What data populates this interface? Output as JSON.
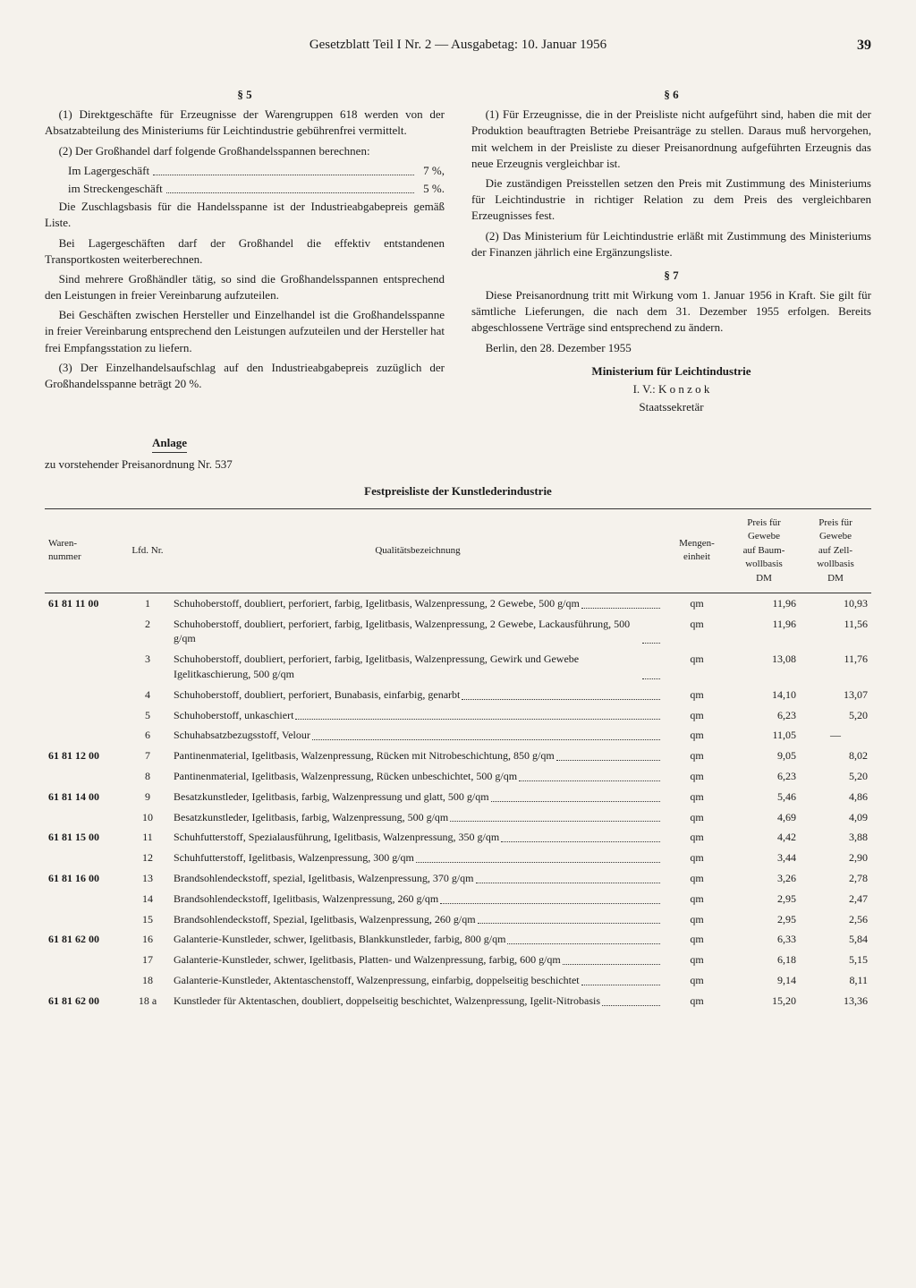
{
  "header": {
    "title": "Gesetzblatt Teil I Nr. 2 — Ausgabetag: 10. Januar 1956",
    "page_number": "39"
  },
  "left_col": {
    "s5_head": "§ 5",
    "p1": "(1) Direktgeschäfte für Erzeugnisse der Warengruppen 618 werden von der Absatzabteilung des Ministeriums für Leichtindustrie gebührenfrei vermittelt.",
    "p2_lead": "(2) Der Großhandel darf folgende Großhandelsspannen berechnen:",
    "rate1_label": "Im Lagergeschäft",
    "rate1_val": "7 %,",
    "rate2_label": "im Streckengeschäft",
    "rate2_val": "5 %.",
    "p3": "Die Zuschlagsbasis für die Handelsspanne ist der Industrieabgabepreis gemäß Liste.",
    "p4": "Bei Lagergeschäften darf der Großhandel die effektiv entstandenen Transportkosten weiterberechnen.",
    "p5": "Sind mehrere Großhändler tätig, so sind die Großhandelsspannen entsprechend den Leistungen in freier Vereinbarung aufzuteilen.",
    "p6": "Bei Geschäften zwischen Hersteller und Einzelhandel ist die Großhandelsspanne in freier Vereinbarung entsprechend den Leistungen aufzuteilen und der Hersteller hat frei Empfangsstation zu liefern.",
    "p7": "(3) Der Einzelhandelsaufschlag auf den Industrieabgabepreis zuzüglich der Großhandelsspanne beträgt 20 %."
  },
  "right_col": {
    "s6_head": "§ 6",
    "p1": "(1) Für Erzeugnisse, die in der Preisliste nicht aufgeführt sind, haben die mit der Produktion beauftragten Betriebe Preisanträge zu stellen. Daraus muß hervorgehen, mit welchem in der Preisliste zu dieser Preisanordnung aufgeführten Erzeugnis das neue Erzeugnis vergleichbar ist.",
    "p2": "Die zuständigen Preisstellen setzen den Preis mit Zustimmung des Ministeriums für Leichtindustrie in richtiger Relation zu dem Preis des vergleichbaren Erzeugnisses fest.",
    "p3": "(2) Das Ministerium für Leichtindustrie erläßt mit Zustimmung des Ministeriums der Finanzen jährlich eine Ergänzungsliste.",
    "s7_head": "§ 7",
    "p4": "Diese Preisanordnung tritt mit Wirkung vom 1. Januar 1956 in Kraft. Sie gilt für sämtliche Lieferungen, die nach dem 31. Dezember 1955 erfolgen. Bereits abgeschlossene Verträge sind entsprechend zu ändern.",
    "date_line": "Berlin, den 28. Dezember 1955",
    "ministry": "Ministerium für Leichtindustrie",
    "sig1": "I. V.: K o n z o k",
    "sig2": "Staatssekretär"
  },
  "anlage": {
    "title": "Anlage",
    "sub": "zu vorstehender Preisanordnung Nr. 537",
    "table_title": "Festpreisliste der Kunstlederindustrie"
  },
  "table": {
    "columns": {
      "waren": "Waren-\nnummer",
      "lfd": "Lfd. Nr.",
      "qual": "Qualitätsbezeichnung",
      "unit": "Mengen-\neinheit",
      "price1": "Preis für\nGewebe\nauf Baum-\nwollbasis\nDM",
      "price2": "Preis für\nGewebe\nauf Zell-\nwollbasis\nDM"
    },
    "rows": [
      {
        "waren": "61 81 11 00",
        "lfd": "1",
        "desc": "Schuhoberstoff, doubliert, perforiert, farbig, Igelitbasis, Walzenpressung, 2 Gewebe, 500 g/qm",
        "unit": "qm",
        "p1": "11,96",
        "p2": "10,93"
      },
      {
        "waren": "",
        "lfd": "2",
        "desc": "Schuhoberstoff, doubliert, perforiert, farbig, Igelitbasis, Walzenpressung, 2 Gewebe, Lackausführung, 500 g/qm",
        "unit": "qm",
        "p1": "11,96",
        "p2": "11,56"
      },
      {
        "waren": "",
        "lfd": "3",
        "desc": "Schuhoberstoff, doubliert, perforiert, farbig, Igelitbasis, Walzenpressung, Gewirk und Gewebe Igelitkaschierung, 500 g/qm",
        "unit": "qm",
        "p1": "13,08",
        "p2": "11,76"
      },
      {
        "waren": "",
        "lfd": "4",
        "desc": "Schuhoberstoff, doubliert, perforiert, Bunabasis, einfarbig, genarbt",
        "unit": "qm",
        "p1": "14,10",
        "p2": "13,07"
      },
      {
        "waren": "",
        "lfd": "5",
        "desc": "Schuhoberstoff, unkaschiert",
        "unit": "qm",
        "p1": "6,23",
        "p2": "5,20"
      },
      {
        "waren": "",
        "lfd": "6",
        "desc": "Schuhabsatzbezugsstoff, Velour",
        "unit": "qm",
        "p1": "11,05",
        "p2": "—"
      },
      {
        "waren": "61 81 12 00",
        "lfd": "7",
        "desc": "Pantinenmaterial, Igelitbasis, Walzenpressung, Rücken mit Nitrobeschichtung, 850 g/qm",
        "unit": "qm",
        "p1": "9,05",
        "p2": "8,02"
      },
      {
        "waren": "",
        "lfd": "8",
        "desc": "Pantinenmaterial, Igelitbasis, Walzenpressung, Rücken unbeschichtet, 500 g/qm",
        "unit": "qm",
        "p1": "6,23",
        "p2": "5,20"
      },
      {
        "waren": "61 81 14 00",
        "lfd": "9",
        "desc": "Besatzkunstleder, Igelitbasis, farbig, Walzenpressung und glatt, 500 g/qm",
        "unit": "qm",
        "p1": "5,46",
        "p2": "4,86"
      },
      {
        "waren": "",
        "lfd": "10",
        "desc": "Besatzkunstleder, Igelitbasis, farbig, Walzenpressung, 500 g/qm",
        "unit": "qm",
        "p1": "4,69",
        "p2": "4,09"
      },
      {
        "waren": "61 81 15 00",
        "lfd": "11",
        "desc": "Schuhfutterstoff, Spezialausführung, Igelitbasis, Walzenpressung, 350 g/qm",
        "unit": "qm",
        "p1": "4,42",
        "p2": "3,88"
      },
      {
        "waren": "",
        "lfd": "12",
        "desc": "Schuhfutterstoff, Igelitbasis, Walzenpressung, 300 g/qm",
        "unit": "qm",
        "p1": "3,44",
        "p2": "2,90"
      },
      {
        "waren": "61 81 16 00",
        "lfd": "13",
        "desc": "Brandsohlendeckstoff, spezial, Igelitbasis, Walzenpressung, 370 g/qm",
        "unit": "qm",
        "p1": "3,26",
        "p2": "2,78"
      },
      {
        "waren": "",
        "lfd": "14",
        "desc": "Brandsohlendeckstoff, Igelitbasis, Walzenpressung, 260 g/qm",
        "unit": "qm",
        "p1": "2,95",
        "p2": "2,47"
      },
      {
        "waren": "",
        "lfd": "15",
        "desc": "Brandsohlendeckstoff, Spezial, Igelitbasis, Walzenpressung, 260 g/qm",
        "unit": "qm",
        "p1": "2,95",
        "p2": "2,56"
      },
      {
        "waren": "61 81 62 00",
        "lfd": "16",
        "desc": "Galanterie-Kunstleder, schwer, Igelitbasis, Blankkunstleder, farbig, 800 g/qm",
        "unit": "qm",
        "p1": "6,33",
        "p2": "5,84"
      },
      {
        "waren": "",
        "lfd": "17",
        "desc": "Galanterie-Kunstleder, schwer, Igelitbasis, Platten- und Walzenpressung, farbig, 600 g/qm",
        "unit": "qm",
        "p1": "6,18",
        "p2": "5,15"
      },
      {
        "waren": "",
        "lfd": "18",
        "desc": "Galanterie-Kunstleder, Aktentaschenstoff, Walzenpressung, einfarbig, doppelseitig beschichtet",
        "unit": "qm",
        "p1": "9,14",
        "p2": "8,11"
      },
      {
        "waren": "61 81 62 00",
        "lfd": "18 a",
        "desc": "Kunstleder für Aktentaschen, doubliert, doppelseitig beschichtet, Walzenpressung, Igelit-Nitrobasis",
        "unit": "qm",
        "p1": "15,20",
        "p2": "13,36"
      }
    ]
  }
}
